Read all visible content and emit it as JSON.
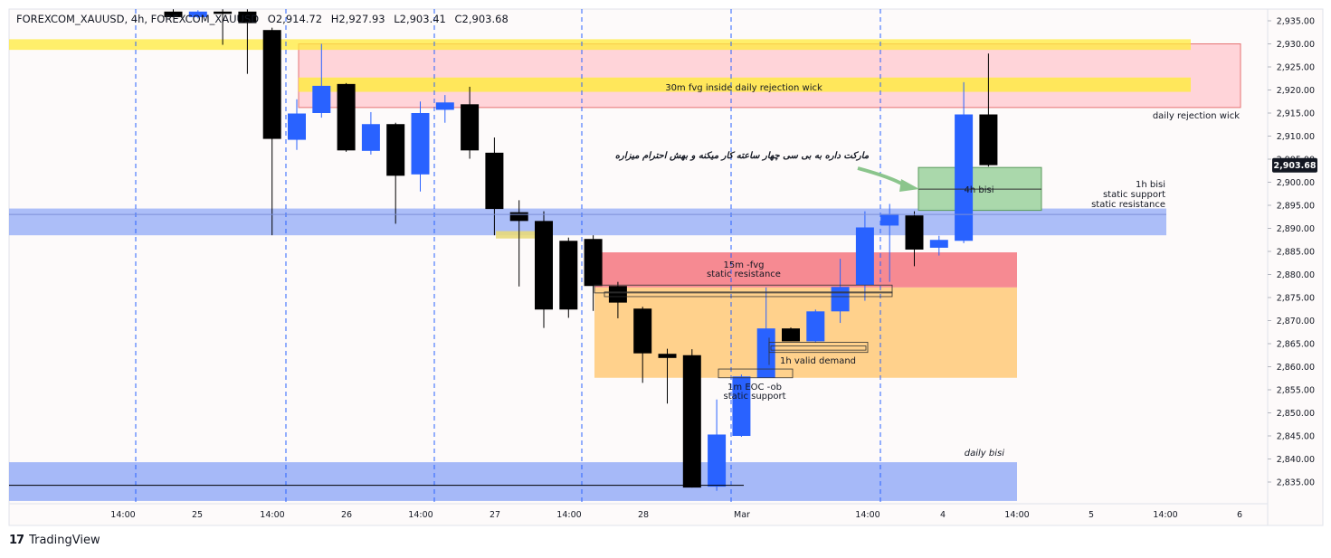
{
  "header": {
    "symbol": "FOREXCOM_XAUUSD, 4h, FOREXCOM_XAUUSD",
    "open": "O2,914.72",
    "high": "H2,927.93",
    "low": "L2,903.41",
    "close": "C2,903.68"
  },
  "branding": {
    "logo": "17",
    "name": "TradingView"
  },
  "colors": {
    "bull": "#2962ff",
    "bear": "#000000",
    "yellow_zone": "#ffeb3b",
    "pink_zone": "#ffcdd2",
    "blue_zone": "#90a9f7",
    "red_zone": "#f6848c",
    "orange_zone": "#ffcc80",
    "green_zone": "#a5d6a7"
  },
  "annotations": {
    "fvg_30m": "30m fvg inside daily rejection wick",
    "daily_rejection": "daily rejection wick",
    "bisi_1h_line1": "1h bisi",
    "bisi_1h_line2": "static support",
    "bisi_1h_line3": "static resistance",
    "bisi_4h": "4h bisi",
    "fvg_15m_line1": "15m -fvg",
    "fvg_15m_line2": "static resistance",
    "valid_demand_1h": "1h valid demand",
    "eoc_ob_line1": "1m EOC -ob",
    "eoc_ob_line2": "static support",
    "daily_bisi": "daily bisi",
    "persian_note": "مارکت داره به بی سی چهار ساعته کار میکنه و بهش احترام میزاره"
  },
  "chart_data": {
    "type": "candlestick",
    "symbol": "FOREXCOM_XAUUSD",
    "timeframe": "4h",
    "ylim": [
      2831,
      2937
    ],
    "y_ticks": [
      2835,
      2840,
      2845,
      2850,
      2855,
      2860,
      2865,
      2870,
      2875,
      2880,
      2885,
      2890,
      2895,
      2900,
      2905,
      2910,
      2915,
      2920,
      2925,
      2930,
      2935
    ],
    "y_tick_labels": [
      "2,835.00",
      "2,840.00",
      "2,845.00",
      "2,850.00",
      "2,855.00",
      "2,860.00",
      "2,865.00",
      "2,870.00",
      "2,875.00",
      "2,880.00",
      "2,885.00",
      "2,890.00",
      "2,895.00",
      "2,900.00",
      "2,905.00",
      "2,910.00",
      "2,915.00",
      "2,920.00",
      "2,925.00",
      "2,930.00",
      "2,935.00"
    ],
    "x_labels": [
      "14:00",
      "25",
      "14:00",
      "26",
      "14:00",
      "27",
      "14:00",
      "28",
      "Mar",
      "14:00",
      "4",
      "14:00",
      "5",
      "14:00",
      "6"
    ],
    "last_price": 2903.68,
    "last_price_label": "2,903.68",
    "candles": [
      {
        "o": 2937.0,
        "h": 2937.5,
        "l": 2935.8,
        "c": 2935.8
      },
      {
        "o": 2935.8,
        "h": 2937.3,
        "l": 2935.5,
        "c": 2937.0
      },
      {
        "o": 2937.0,
        "h": 2937.5,
        "l": 2929.8,
        "c": 2936.5
      },
      {
        "o": 2937.0,
        "h": 2937.5,
        "l": 2923.5,
        "c": 2934.5
      },
      {
        "o": 2933.0,
        "h": 2933.5,
        "l": 2888.5,
        "c": 2909.4
      },
      {
        "o": 2909.2,
        "h": 2918.0,
        "l": 2907.0,
        "c": 2914.9
      },
      {
        "o": 2915.0,
        "h": 2930.0,
        "l": 2914.0,
        "c": 2920.9
      },
      {
        "o": 2921.3,
        "h": 2921.5,
        "l": 2906.6,
        "c": 2906.9
      },
      {
        "o": 2906.8,
        "h": 2915.2,
        "l": 2906.0,
        "c": 2912.6
      },
      {
        "o": 2912.6,
        "h": 2912.9,
        "l": 2891.0,
        "c": 2901.4
      },
      {
        "o": 2901.7,
        "h": 2917.5,
        "l": 2898.0,
        "c": 2915.0
      },
      {
        "o": 2915.7,
        "h": 2918.9,
        "l": 2912.9,
        "c": 2917.3
      },
      {
        "o": 2916.9,
        "h": 2920.7,
        "l": 2905.1,
        "c": 2906.9
      },
      {
        "o": 2906.4,
        "h": 2909.7,
        "l": 2888.5,
        "c": 2894.2
      },
      {
        "o": 2893.5,
        "h": 2896.1,
        "l": 2877.4,
        "c": 2891.6
      },
      {
        "o": 2891.6,
        "h": 2893.7,
        "l": 2868.4,
        "c": 2872.4
      },
      {
        "o": 2887.3,
        "h": 2888.0,
        "l": 2870.6,
        "c": 2872.4
      },
      {
        "o": 2887.7,
        "h": 2888.5,
        "l": 2872.1,
        "c": 2877.5
      },
      {
        "o": 2877.5,
        "h": 2878.4,
        "l": 2870.5,
        "c": 2873.9
      },
      {
        "o": 2872.6,
        "h": 2873.0,
        "l": 2856.5,
        "c": 2862.9
      },
      {
        "o": 2862.8,
        "h": 2863.9,
        "l": 2852.0,
        "c": 2861.9
      },
      {
        "o": 2862.5,
        "h": 2863.8,
        "l": 2833.8,
        "c": 2833.8
      },
      {
        "o": 2834.0,
        "h": 2852.9,
        "l": 2833.1,
        "c": 2845.3
      },
      {
        "o": 2845.0,
        "h": 2858.3,
        "l": 2844.8,
        "c": 2857.9
      },
      {
        "o": 2857.6,
        "h": 2877.2,
        "l": 2857.6,
        "c": 2868.3
      },
      {
        "o": 2868.3,
        "h": 2868.5,
        "l": 2865.5,
        "c": 2865.5
      },
      {
        "o": 2865.5,
        "h": 2872.4,
        "l": 2865.2,
        "c": 2872.0
      },
      {
        "o": 2872.0,
        "h": 2883.4,
        "l": 2869.5,
        "c": 2877.3
      },
      {
        "o": 2877.7,
        "h": 2893.7,
        "l": 2874.3,
        "c": 2890.2
      },
      {
        "o": 2890.6,
        "h": 2895.3,
        "l": 2878.4,
        "c": 2893.1
      },
      {
        "o": 2892.8,
        "h": 2893.7,
        "l": 2881.8,
        "c": 2885.4
      },
      {
        "o": 2885.8,
        "h": 2888.4,
        "l": 2884.1,
        "c": 2887.5
      },
      {
        "o": 2887.3,
        "h": 2921.7,
        "l": 2886.8,
        "c": 2914.7
      },
      {
        "o": 2914.7,
        "h": 2927.9,
        "l": 2903.4,
        "c": 2903.7
      }
    ]
  }
}
